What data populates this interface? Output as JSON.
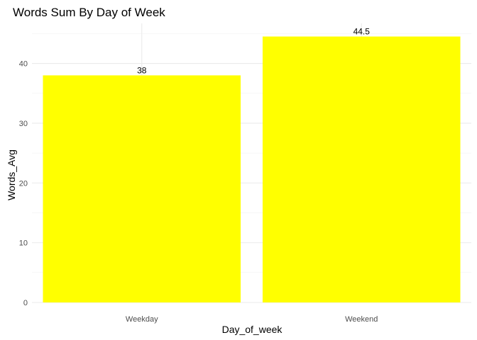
{
  "chart_data": {
    "type": "bar",
    "title": "Words Sum By Day of Week",
    "xlabel": "Day_of_week",
    "ylabel": "Words_Avg",
    "categories": [
      "Weekday",
      "Weekend"
    ],
    "values": [
      38,
      44.5
    ],
    "data_labels": [
      "38",
      "44.5"
    ],
    "ylim": [
      0,
      46.7
    ],
    "y_ticks": [
      0,
      10,
      20,
      30,
      40
    ],
    "y_tick_labels": [
      "0",
      "10",
      "20",
      "30",
      "40"
    ],
    "grid": true,
    "bar_color": "#FFFF00",
    "theme": "minimal"
  }
}
